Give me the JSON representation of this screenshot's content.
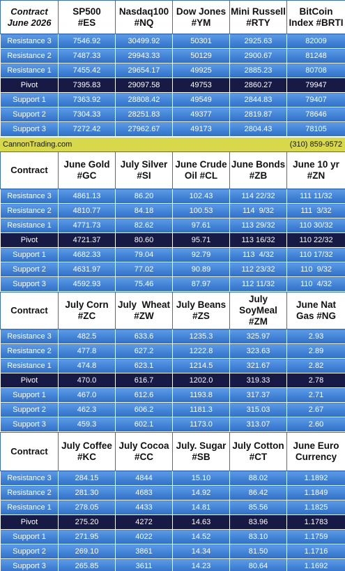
{
  "sections": [
    {
      "header": [
        [
          "Contract",
          "June 2026"
        ],
        [
          "SP500",
          "#ES"
        ],
        [
          "Nasdaq100",
          "#NQ"
        ],
        [
          "Dow Jones",
          "#YM"
        ],
        [
          "Mini Russell",
          "#RTY"
        ],
        [
          "BitCoin",
          "Index #BRTI"
        ]
      ],
      "rows": [
        [
          "Resistance 3",
          "7546.92",
          "30499.92",
          "50301",
          "2925.63",
          "82009"
        ],
        [
          "Resistance 2",
          "7487.33",
          "29943.33",
          "50129",
          "2900.67",
          "81248"
        ],
        [
          "Resistance 1",
          "7455.42",
          "29654.17",
          "49925",
          "2885.23",
          "80708"
        ],
        [
          "Pivot",
          "7395.83",
          "29097.58",
          "49753",
          "2860.27",
          "79947"
        ],
        [
          "Support 1",
          "7363.92",
          "28808.42",
          "49549",
          "2844.83",
          "79407"
        ],
        [
          "Support 2",
          "7304.33",
          "28251.83",
          "49377",
          "2819.87",
          "78646"
        ],
        [
          "Support 3",
          "7272.42",
          "27962.67",
          "49173",
          "2804.43",
          "78105"
        ]
      ]
    },
    {
      "header": [
        [
          "Contract"
        ],
        [
          "June Gold",
          "#GC"
        ],
        [
          "July Silver",
          "#SI"
        ],
        [
          "June Crude",
          "Oil #CL"
        ],
        [
          "June Bonds",
          "#ZB"
        ],
        [
          "June 10 yr",
          "#ZN"
        ]
      ],
      "rows": [
        [
          "Resistance 3",
          "4861.13",
          "86.20",
          "102.43",
          "114 22/32",
          "111 11/32"
        ],
        [
          "Resistance 2",
          "4810.77",
          "84.18",
          "100.53",
          "114  9/32",
          "111  3/32"
        ],
        [
          "Resistance 1",
          "4771.73",
          "82.62",
          "97.61",
          "113 29/32",
          "110 30/32"
        ],
        [
          "Pivot",
          "4721.37",
          "80.60",
          "95.71",
          "113 16/32",
          "110 22/32"
        ],
        [
          "Support 1",
          "4682.33",
          "79.04",
          "92.79",
          "113  4/32",
          "110 17/32"
        ],
        [
          "Support 2",
          "4631.97",
          "77.02",
          "90.89",
          "112 23/32",
          "110  9/32"
        ],
        [
          "Support 3",
          "4592.93",
          "75.46",
          "87.97",
          "112 11/32",
          "110  4/32"
        ]
      ]
    },
    {
      "header": [
        [
          "Contract"
        ],
        [
          "July Corn",
          "#ZC"
        ],
        [
          "July  Wheat",
          "#ZW"
        ],
        [
          "July Beans",
          "#ZS"
        ],
        [
          "July",
          "SoyMeal",
          "#ZM"
        ],
        [
          "June Nat",
          "Gas #NG"
        ]
      ],
      "rows": [
        [
          "Resistance 3",
          "482.5",
          "633.6",
          "1235.3",
          "325.97",
          "2.93"
        ],
        [
          "Resistance 2",
          "477.8",
          "627.2",
          "1222.8",
          "323.63",
          "2.89"
        ],
        [
          "Resistance 1",
          "474.8",
          "623.1",
          "1214.5",
          "321.67",
          "2.82"
        ],
        [
          "Pivot",
          "470.0",
          "616.7",
          "1202.0",
          "319.33",
          "2.78"
        ],
        [
          "Support 1",
          "467.0",
          "612.6",
          "1193.8",
          "317.37",
          "2.71"
        ],
        [
          "Support 2",
          "462.3",
          "606.2",
          "1181.3",
          "315.03",
          "2.67"
        ],
        [
          "Support 3",
          "459.3",
          "602.1",
          "1173.0",
          "313.07",
          "2.60"
        ]
      ]
    },
    {
      "header": [
        [
          "Contract"
        ],
        [
          "July Coffee",
          "#KC"
        ],
        [
          "July Cocoa",
          "#CC"
        ],
        [
          "July. Sugar",
          "#SB"
        ],
        [
          "July Cotton",
          "#CT"
        ],
        [
          "June Euro",
          "Currency"
        ]
      ],
      "rows": [
        [
          "Resistance 3",
          "284.15",
          "4844",
          "15.10",
          "88.02",
          "1.1892"
        ],
        [
          "Resistance 2",
          "281.30",
          "4683",
          "14.92",
          "86.42",
          "1.1849"
        ],
        [
          "Resistance 1",
          "278.05",
          "4433",
          "14.81",
          "85.56",
          "1.1825"
        ],
        [
          "Pivot",
          "275.20",
          "4272",
          "14.63",
          "83.96",
          "1.1783"
        ],
        [
          "Support 1",
          "271.95",
          "4022",
          "14.52",
          "83.10",
          "1.1759"
        ],
        [
          "Support 2",
          "269.10",
          "3861",
          "14.34",
          "81.50",
          "1.1716"
        ],
        [
          "Support 3",
          "265.85",
          "3611",
          "14.23",
          "80.64",
          "1.1692"
        ]
      ]
    }
  ],
  "banner": {
    "site": "CannonTrading.com",
    "phone": "(310) 859-9572"
  }
}
